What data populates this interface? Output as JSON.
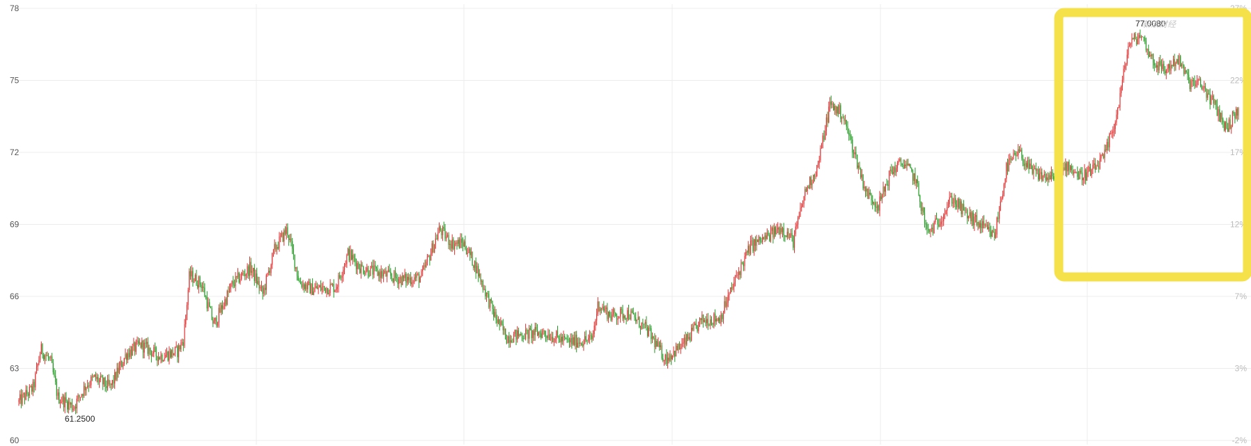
{
  "chart_data": {
    "type": "candlestick",
    "title": "",
    "xlabel": "",
    "ylabel": "",
    "ylim": [
      60,
      78
    ],
    "y_ticks": [
      60,
      63,
      66,
      69,
      72,
      75,
      78
    ],
    "y_tick_labels": [
      "60",
      "63",
      "66",
      "69",
      "72",
      "75",
      "78"
    ],
    "y2_tick_labels": [
      "-2%",
      "3%",
      "7%",
      "12%",
      "17%",
      "22%",
      "27%"
    ],
    "grid": true,
    "up_color": "#e32d2d",
    "down_color": "#1f9a1f",
    "annotations": {
      "min": {
        "label": "61.2500",
        "value": 61.25
      },
      "max": {
        "label": "77.0080",
        "value": 77.008
      }
    },
    "watermark": "新浪财经",
    "price_path": [
      [
        0.0,
        61.6
      ],
      [
        0.012,
        62.2
      ],
      [
        0.018,
        63.8
      ],
      [
        0.026,
        63.3
      ],
      [
        0.032,
        61.8
      ],
      [
        0.045,
        61.4
      ],
      [
        0.055,
        62.3
      ],
      [
        0.062,
        62.6
      ],
      [
        0.075,
        62.2
      ],
      [
        0.088,
        63.6
      ],
      [
        0.1,
        64.0
      ],
      [
        0.115,
        63.5
      ],
      [
        0.13,
        63.7
      ],
      [
        0.135,
        64.2
      ],
      [
        0.14,
        66.9
      ],
      [
        0.15,
        66.5
      ],
      [
        0.16,
        64.8
      ],
      [
        0.175,
        66.5
      ],
      [
        0.19,
        67.2
      ],
      [
        0.2,
        66.1
      ],
      [
        0.21,
        68.0
      ],
      [
        0.22,
        68.8
      ],
      [
        0.23,
        66.6
      ],
      [
        0.24,
        66.3
      ],
      [
        0.26,
        66.4
      ],
      [
        0.27,
        67.8
      ],
      [
        0.28,
        67.2
      ],
      [
        0.3,
        66.9
      ],
      [
        0.315,
        66.7
      ],
      [
        0.33,
        66.8
      ],
      [
        0.345,
        68.8
      ],
      [
        0.355,
        68.2
      ],
      [
        0.365,
        68.2
      ],
      [
        0.375,
        67.2
      ],
      [
        0.39,
        65.2
      ],
      [
        0.4,
        64.3
      ],
      [
        0.41,
        64.4
      ],
      [
        0.43,
        64.5
      ],
      [
        0.45,
        64.1
      ],
      [
        0.47,
        64.2
      ],
      [
        0.475,
        65.7
      ],
      [
        0.485,
        65.2
      ],
      [
        0.5,
        65.3
      ],
      [
        0.515,
        64.6
      ],
      [
        0.53,
        63.4
      ],
      [
        0.545,
        64.0
      ],
      [
        0.56,
        65.0
      ],
      [
        0.575,
        65.1
      ],
      [
        0.59,
        67.0
      ],
      [
        0.6,
        68.1
      ],
      [
        0.615,
        68.5
      ],
      [
        0.625,
        68.9
      ],
      [
        0.635,
        68.3
      ],
      [
        0.645,
        70.4
      ],
      [
        0.655,
        71.4
      ],
      [
        0.665,
        74.0
      ],
      [
        0.675,
        73.6
      ],
      [
        0.685,
        72.0
      ],
      [
        0.695,
        70.3
      ],
      [
        0.705,
        69.8
      ],
      [
        0.715,
        71.2
      ],
      [
        0.725,
        71.6
      ],
      [
        0.735,
        70.9
      ],
      [
        0.745,
        68.6
      ],
      [
        0.755,
        69.2
      ],
      [
        0.765,
        70.1
      ],
      [
        0.775,
        69.5
      ],
      [
        0.79,
        68.9
      ],
      [
        0.8,
        68.5
      ],
      [
        0.81,
        71.4
      ],
      [
        0.82,
        72.0
      ],
      [
        0.83,
        71.2
      ],
      [
        0.84,
        71.0
      ],
      [
        0.85,
        70.9
      ],
      [
        0.86,
        71.5
      ],
      [
        0.87,
        71.0
      ],
      [
        0.88,
        71.2
      ],
      [
        0.89,
        71.8
      ],
      [
        0.9,
        73.5
      ],
      [
        0.91,
        76.5
      ],
      [
        0.92,
        76.9
      ],
      [
        0.93,
        75.8
      ],
      [
        0.94,
        75.4
      ],
      [
        0.95,
        75.9
      ],
      [
        0.96,
        74.9
      ],
      [
        0.97,
        74.8
      ],
      [
        0.98,
        74.0
      ],
      [
        0.99,
        73.0
      ],
      [
        1.0,
        73.8
      ]
    ]
  }
}
